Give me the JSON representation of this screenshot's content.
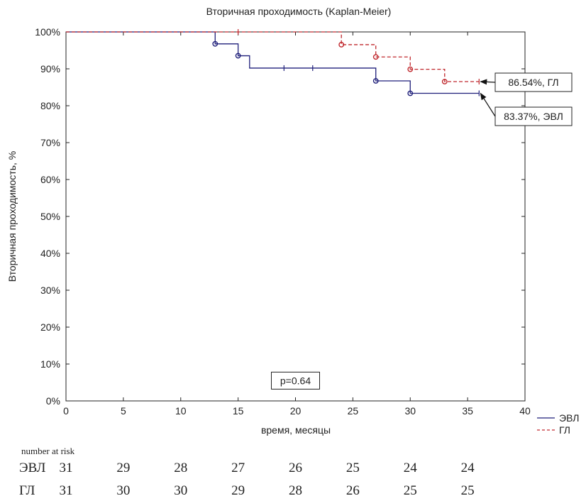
{
  "chart_data": {
    "type": "line",
    "title": "Вторичная проходимость (Kaplan-Meier)",
    "xlabel": "время, месяцы",
    "ylabel": "Вторичная проходимость, %",
    "xlim": [
      0,
      40
    ],
    "ylim": [
      0,
      100
    ],
    "x_ticks": [
      "0",
      "5",
      "10",
      "15",
      "20",
      "25",
      "30",
      "35",
      "40"
    ],
    "y_ticks": [
      "0%",
      "10%",
      "20%",
      "30%",
      "40%",
      "50%",
      "60%",
      "70%",
      "80%",
      "90%",
      "100%"
    ],
    "grid": false,
    "legend_position": "bottom-right",
    "series": [
      {
        "name": "ЭВЛ",
        "color": "#1f1f7a",
        "line_style": "solid",
        "steps": [
          [
            0,
            100
          ],
          [
            13,
            96.77
          ],
          [
            15,
            93.55
          ],
          [
            16,
            90.2
          ],
          [
            27,
            86.73
          ],
          [
            30,
            83.37
          ],
          [
            36,
            83.37
          ]
        ],
        "event_markers": [
          [
            13,
            96.77
          ],
          [
            15,
            93.55
          ],
          [
            27,
            86.73
          ],
          [
            30,
            83.37
          ]
        ],
        "censor_marks": [
          [
            19,
            90.2
          ],
          [
            21.5,
            90.2
          ],
          [
            36,
            83.37
          ]
        ],
        "end_label": "83.37%, ЭВЛ"
      },
      {
        "name": "ГЛ",
        "color": "#c0282d",
        "line_style": "dashed",
        "steps": [
          [
            0,
            100
          ],
          [
            24,
            96.55
          ],
          [
            27,
            93.22
          ],
          [
            30,
            89.88
          ],
          [
            33,
            86.54
          ],
          [
            36,
            86.54
          ]
        ],
        "event_markers": [
          [
            24,
            96.55
          ],
          [
            27,
            93.22
          ],
          [
            30,
            89.88
          ],
          [
            33,
            86.54
          ]
        ],
        "censor_marks": [
          [
            15,
            100
          ],
          [
            36,
            86.54
          ]
        ],
        "end_label": "86.54%, ГЛ"
      }
    ],
    "annotations": [
      {
        "text": "p=0.64",
        "x": 20,
        "y": 5.5
      }
    ],
    "risk_table": {
      "header": "number at risk",
      "x": [
        0,
        5,
        10,
        15,
        20,
        25,
        30,
        35
      ],
      "rows": [
        {
          "label": "ЭВЛ",
          "values": [
            "31",
            "29",
            "28",
            "27",
            "26",
            "25",
            "24",
            "24"
          ]
        },
        {
          "label": "ГЛ",
          "values": [
            "31",
            "30",
            "30",
            "29",
            "28",
            "26",
            "25",
            "25"
          ]
        }
      ]
    }
  }
}
